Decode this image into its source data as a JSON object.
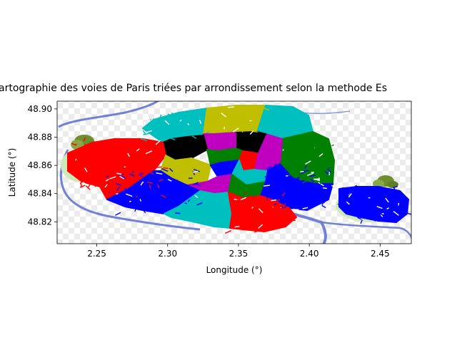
{
  "figure": {
    "title": "artographie des voies de Paris triées par arrondissement selon la methode Es"
  },
  "chart_data": {
    "type": "scatter",
    "title": "artographie des voies de Paris triées par arrondissement selon la methode Es",
    "xlabel": "Longitude (°)",
    "ylabel": "Latitude (°)",
    "xlim": [
      2.222,
      2.472
    ],
    "ylim": [
      48.8045,
      48.9055
    ],
    "xticks": [
      "2.25",
      "2.30",
      "2.35",
      "2.40",
      "2.45"
    ],
    "xtick_values": [
      2.25,
      2.3,
      2.35,
      2.4,
      2.45
    ],
    "yticks": [
      "48.82",
      "48.84",
      "48.86",
      "48.88",
      "48.90"
    ],
    "ytick_values": [
      48.82,
      48.84,
      48.86,
      48.88,
      48.9
    ],
    "grid": false,
    "cluster_colors": [
      "#ff0000",
      "#0000ff",
      "#00bfbf",
      "#bfbf00",
      "#008000",
      "#000000",
      "#bf00bf"
    ]
  },
  "colors": {
    "river": "#5a6fd0",
    "park": "#cfe8b8",
    "tree": "#6f8f2f"
  }
}
